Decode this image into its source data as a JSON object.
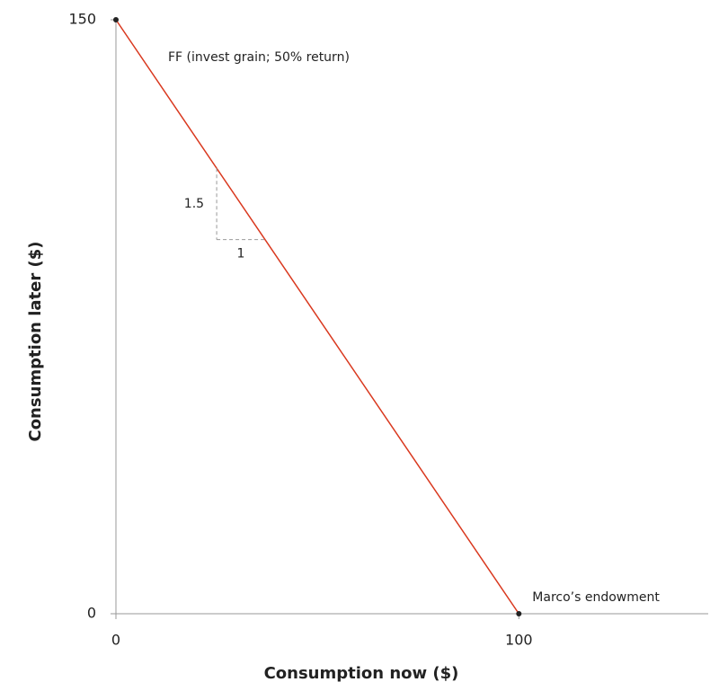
{
  "chart_data": {
    "type": "line",
    "x_label": "Consumption now ($)",
    "y_label": "Consumption later ($)",
    "x": [
      0,
      100
    ],
    "series": [
      {
        "name": "FF (invest grain; 50% return)",
        "color": "#d9381e",
        "values": [
          150,
          0
        ]
      }
    ],
    "xlim": [
      0,
      147
    ],
    "ylim": [
      0,
      150
    ],
    "xticks": [
      0,
      100
    ],
    "yticks": [
      0,
      150
    ],
    "grid": false,
    "point_color": "#222222",
    "annotations": {
      "endowment": "Marco’s endowment",
      "rise": "1.5",
      "run": "1"
    },
    "slope_marker": {
      "x": [
        25,
        37
      ]
    }
  }
}
